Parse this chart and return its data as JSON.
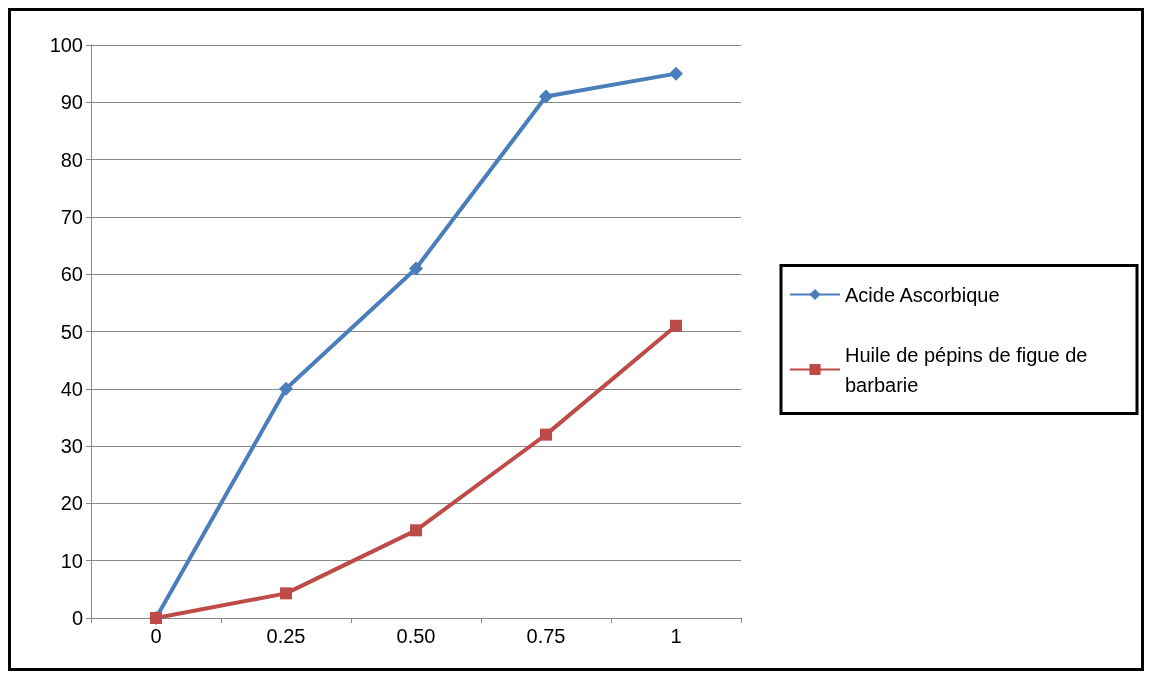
{
  "chart_data": {
    "type": "line",
    "categories": [
      "0",
      "0.25",
      "0.50",
      "0.75",
      "1"
    ],
    "series": [
      {
        "name": "Acide Ascorbique",
        "color": "#4a7ebb",
        "marker": "diamond",
        "values": [
          0,
          40,
          61,
          91,
          95
        ]
      },
      {
        "name": "Huile de pépins de figue de barbarie",
        "color": "#be4b48",
        "marker": "square",
        "values": [
          0,
          4.3,
          15.3,
          32,
          51
        ]
      }
    ],
    "ylim": [
      0,
      100
    ],
    "yticks": [
      0,
      10,
      20,
      30,
      40,
      50,
      60,
      70,
      80,
      90,
      100
    ],
    "grid": "y",
    "legend": "right"
  }
}
